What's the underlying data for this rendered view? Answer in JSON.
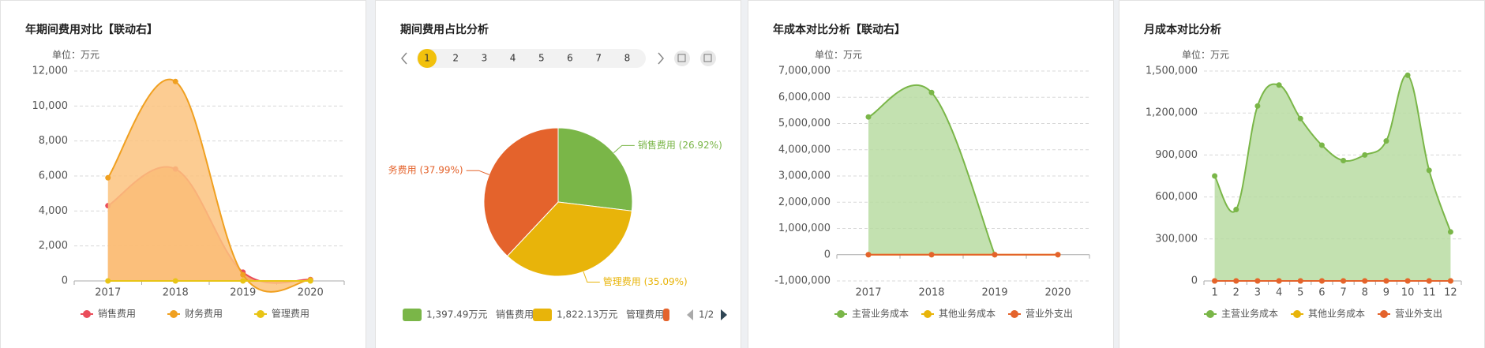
{
  "chart_data": [
    {
      "type": "line",
      "title": "年期间费用对比【联动右】",
      "unit": "单位：万元",
      "categories": [
        "2017",
        "2018",
        "2019",
        "2020"
      ],
      "ylim": [
        0,
        12000
      ],
      "yticks": [
        0,
        {
          "value": 2000,
          "label": "2,000"
        },
        {
          "value": 4000,
          "label": "4,000"
        },
        {
          "value": 6000,
          "label": "6,000"
        },
        {
          "value": 8000,
          "label": "8,000"
        },
        {
          "value": 10000,
          "label": "10,000"
        },
        {
          "value": 12000,
          "label": "12,000"
        }
      ],
      "grid": true,
      "series": [
        {
          "name": "销售费用",
          "color": "#ea4d5a",
          "area_color": "#f59a4e",
          "values": [
            4300,
            6400,
            500,
            80
          ]
        },
        {
          "name": "财务费用",
          "color": "#f0a020",
          "area_color": "#fbc37f",
          "values": [
            5900,
            11400,
            350,
            60
          ]
        },
        {
          "name": "管理费用",
          "color": "#e8c416",
          "area_color": null,
          "values": [
            0,
            0,
            0,
            0
          ]
        }
      ]
    },
    {
      "type": "pie",
      "title": "期间费用占比分析",
      "pages": [
        1,
        2,
        3,
        4,
        5,
        6,
        7,
        8
      ],
      "categories": [
        "销售费用",
        "管理费用",
        null
      ],
      "values": [
        26.92,
        35.09,
        37.99
      ],
      "value_labels": [
        "销售费用 (26.92%)",
        "管理费用 (35.09%)",
        "务费用 (37.99%)"
      ],
      "legend_amounts": [
        "1,397.49万元",
        "1,822.13万元",
        null
      ],
      "legend_page": "1/2",
      "colors": [
        "#7ab648",
        "#e8b40a",
        "#e4632c"
      ]
    },
    {
      "type": "line",
      "title": "年成本对比分析【联动右】",
      "unit": "单位：万元",
      "categories": [
        "2017",
        "2018",
        "2019",
        "2020"
      ],
      "ylim": [
        -1000000,
        7000000
      ],
      "yticks": [
        {
          "value": -1000000,
          "label": "-1,000,000"
        },
        0,
        {
          "value": 1000000,
          "label": "1,000,000"
        },
        {
          "value": 2000000,
          "label": "2,000,000"
        },
        {
          "value": 3000000,
          "label": "3,000,000"
        },
        {
          "value": 4000000,
          "label": "4,000,000"
        },
        {
          "value": 5000000,
          "label": "5,000,000"
        },
        {
          "value": 6000000,
          "label": "6,000,000"
        },
        {
          "value": 7000000,
          "label": "7,000,000"
        }
      ],
      "grid": true,
      "series": [
        {
          "name": "主营业务成本",
          "color": "#7ab648",
          "area_color": "#b8dca2",
          "values": [
            5250000,
            6180000,
            0,
            null
          ]
        },
        {
          "name": "其他业务成本",
          "color": "#e8b40a",
          "area_color": null,
          "values": [
            0,
            0,
            0,
            0
          ]
        },
        {
          "name": "营业外支出",
          "color": "#e4632c",
          "area_color": null,
          "values": [
            0,
            0,
            0,
            0
          ]
        }
      ]
    },
    {
      "type": "line",
      "title": "月成本对比分析",
      "unit": "单位：万元",
      "categories": [
        "1",
        "2",
        "3",
        "4",
        "5",
        "6",
        "7",
        "8",
        "9",
        "10",
        "11",
        "12"
      ],
      "ylim": [
        0,
        1500000
      ],
      "yticks": [
        0,
        {
          "value": 300000,
          "label": "300,000"
        },
        {
          "value": 600000,
          "label": "600,000"
        },
        {
          "value": 900000,
          "label": "900,000"
        },
        {
          "value": 1200000,
          "label": "1,200,000"
        },
        {
          "value": 1500000,
          "label": "1,500,000"
        }
      ],
      "grid": true,
      "series": [
        {
          "name": "主营业务成本",
          "color": "#7ab648",
          "area_color": "#b8dca2",
          "values": [
            750000,
            510000,
            1250000,
            1400000,
            1160000,
            970000,
            860000,
            900000,
            1000000,
            1470000,
            790000,
            350000
          ]
        },
        {
          "name": "其他业务成本",
          "color": "#e8b40a",
          "area_color": null,
          "values": [
            0,
            0,
            0,
            0,
            0,
            0,
            0,
            0,
            0,
            0,
            0,
            0
          ]
        },
        {
          "name": "营业外支出",
          "color": "#e4632c",
          "area_color": null,
          "values": [
            0,
            0,
            0,
            0,
            0,
            0,
            0,
            0,
            0,
            0,
            0,
            0
          ]
        }
      ]
    }
  ]
}
